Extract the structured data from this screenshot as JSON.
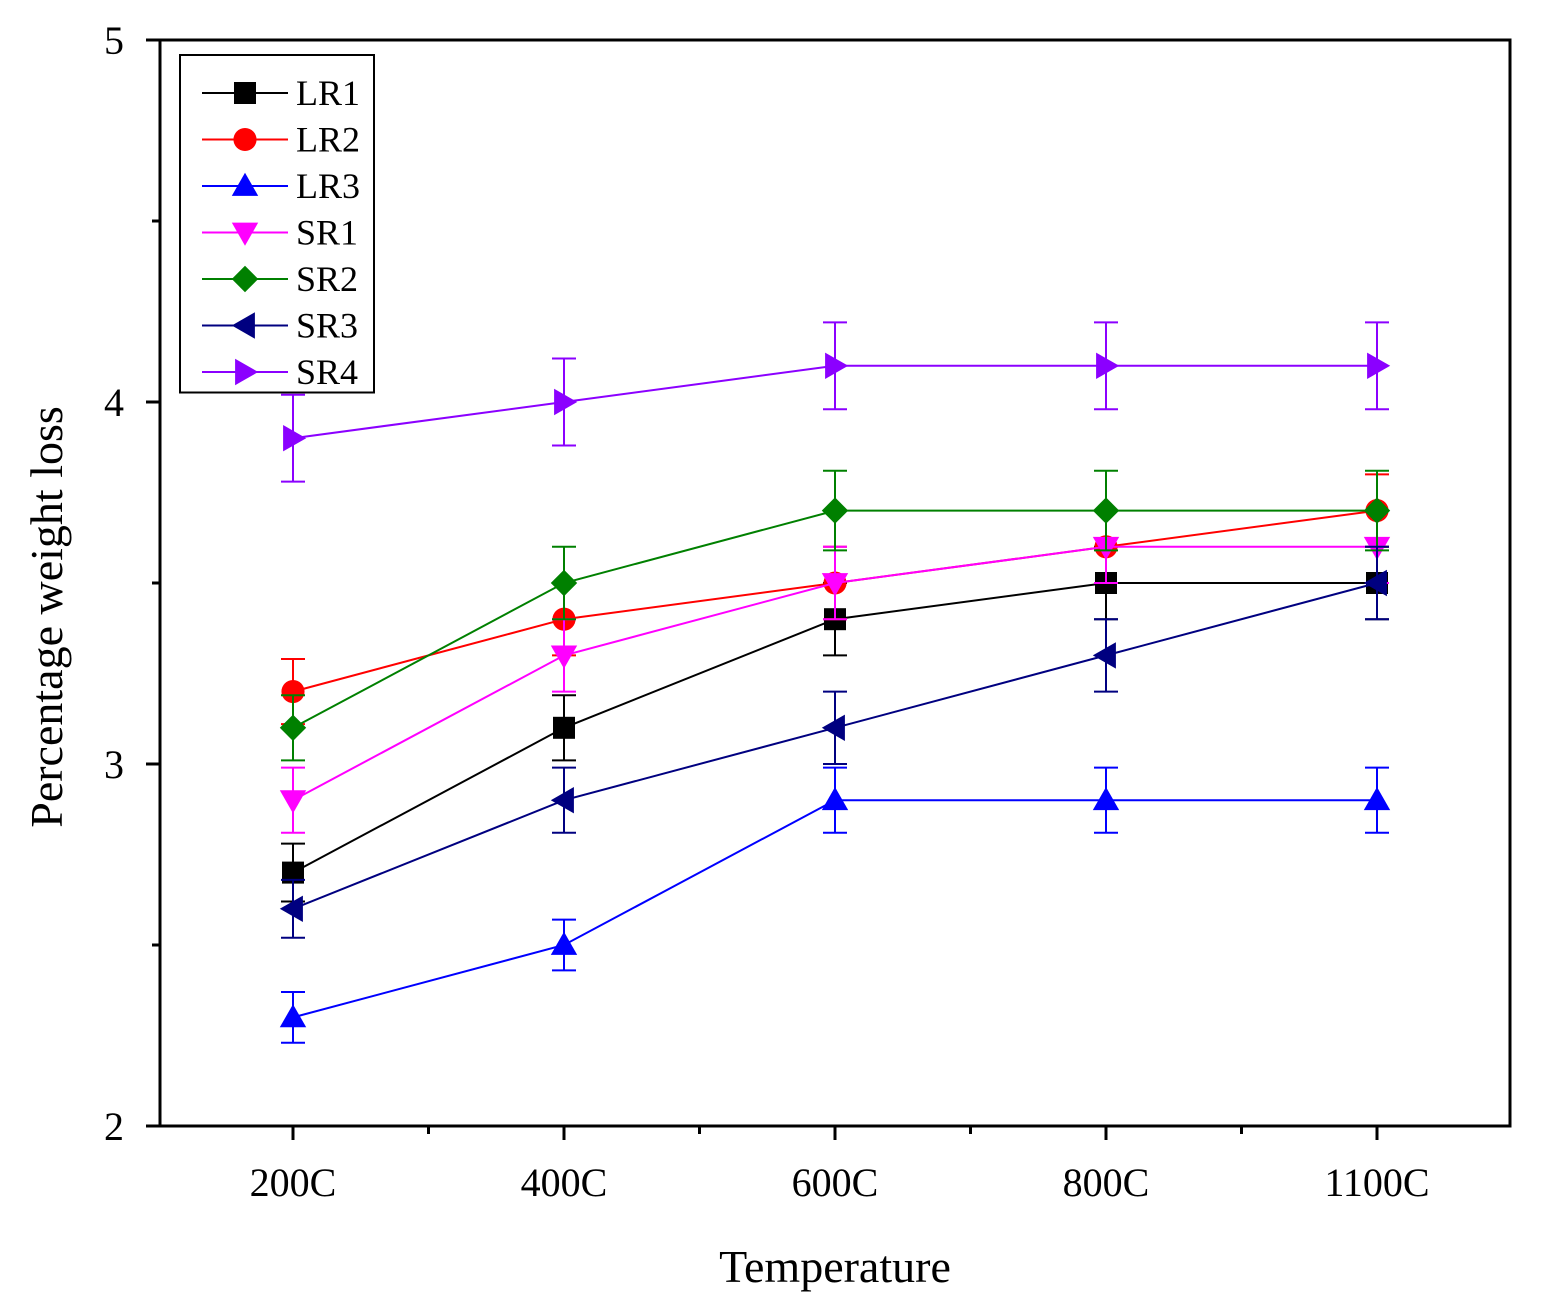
{
  "chart_data": {
    "type": "line",
    "title": "",
    "xlabel": "Temperature",
    "ylabel": "Percentage weight loss",
    "categories": [
      "200C",
      "400C",
      "600C",
      "800C",
      "1100C"
    ],
    "ylim": [
      2,
      5
    ],
    "yticks": [
      2,
      3,
      4,
      5
    ],
    "ytick_labels": [
      "2",
      "3",
      "4",
      "5"
    ],
    "grid": false,
    "legend_position": "top-left",
    "series": [
      {
        "name": "LR1",
        "color": "#000000",
        "marker": "square",
        "values": [
          2.7,
          3.1,
          3.4,
          3.5,
          3.5
        ],
        "errors": [
          0.08,
          0.09,
          0.1,
          0.1,
          0.1
        ]
      },
      {
        "name": "LR2",
        "color": "#ff0000",
        "marker": "circle",
        "values": [
          3.2,
          3.4,
          3.5,
          3.6,
          3.7
        ],
        "errors": [
          0.09,
          0.1,
          0.1,
          0.1,
          0.1
        ]
      },
      {
        "name": "LR3",
        "color": "#0000ff",
        "marker": "triangle-up",
        "values": [
          2.3,
          2.5,
          2.9,
          2.9,
          2.9
        ],
        "errors": [
          0.07,
          0.07,
          0.09,
          0.09,
          0.09
        ]
      },
      {
        "name": "SR1",
        "color": "#ff00ff",
        "marker": "triangle-down",
        "values": [
          2.9,
          3.3,
          3.5,
          3.6,
          3.6
        ],
        "errors": [
          0.09,
          0.1,
          0.1,
          0.1,
          0.1
        ]
      },
      {
        "name": "SR2",
        "color": "#008000",
        "marker": "diamond",
        "values": [
          3.1,
          3.5,
          3.7,
          3.7,
          3.7
        ],
        "errors": [
          0.09,
          0.1,
          0.11,
          0.11,
          0.11
        ]
      },
      {
        "name": "SR3",
        "color": "#000080",
        "marker": "triangle-left",
        "values": [
          2.6,
          2.9,
          3.1,
          3.3,
          3.5
        ],
        "errors": [
          0.08,
          0.09,
          0.1,
          0.1,
          0.1
        ]
      },
      {
        "name": "SR4",
        "color": "#8b00ff",
        "marker": "triangle-right",
        "values": [
          3.9,
          4.0,
          4.1,
          4.1,
          4.1
        ],
        "errors": [
          0.12,
          0.12,
          0.12,
          0.12,
          0.12
        ]
      }
    ]
  }
}
